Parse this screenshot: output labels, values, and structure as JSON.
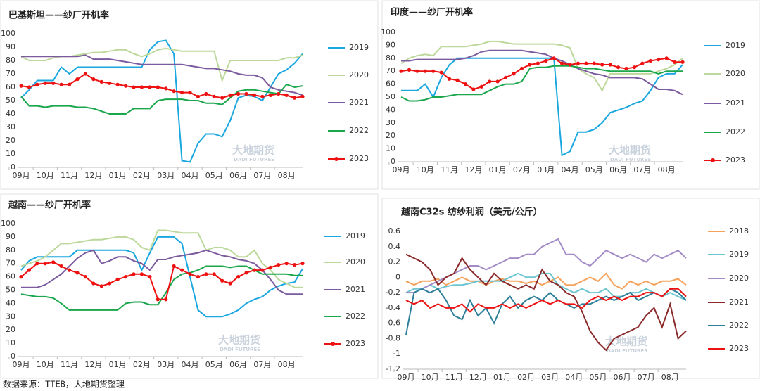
{
  "source": "数据来源：TTEB，大地期货整理",
  "chart_data": [
    {
      "type": "line",
      "title": "巴基斯坦——纱厂开机率",
      "watermark": "大地期货",
      "watermark_en": "DADI FUTURES",
      "categories": [
        "09月",
        null,
        null,
        "10月",
        null,
        null,
        "11月",
        null,
        null,
        "12月",
        null,
        null,
        "01月",
        null,
        null,
        "02月",
        null,
        null,
        "03月",
        null,
        null,
        "04月",
        null,
        null,
        "05月",
        null,
        null,
        "06月",
        null,
        null,
        "07月",
        null,
        null,
        "08月",
        null,
        null
      ],
      "ylim": [
        0,
        100
      ],
      "yticks": [
        0,
        10,
        20,
        30,
        40,
        50,
        60,
        70,
        80,
        90,
        100
      ],
      "grid": false,
      "series": [
        {
          "name": "2019",
          "color": "#1aa7e0",
          "values": [
            52,
            58,
            65,
            65,
            65,
            75,
            70,
            75,
            75,
            75,
            75,
            75,
            75,
            75,
            75,
            75,
            88,
            94,
            95,
            85,
            5,
            4,
            18,
            25,
            25,
            23,
            35,
            52,
            54,
            53,
            50,
            60,
            70,
            73,
            78,
            85
          ]
        },
        {
          "name": "2020",
          "color": "#bcd89a",
          "values": [
            83,
            80,
            80,
            80,
            82,
            83,
            83,
            84,
            85,
            86,
            86,
            87,
            88,
            88,
            85,
            83,
            85,
            88,
            89,
            88,
            87,
            87,
            87,
            87,
            87,
            65,
            80,
            80,
            80,
            80,
            80,
            80,
            80,
            82,
            82,
            84
          ]
        },
        {
          "name": "2021",
          "color": "#7b5a9e",
          "values": [
            83,
            83,
            83,
            83,
            83,
            83,
            83,
            83,
            84,
            81,
            81,
            81,
            80,
            79,
            78,
            77,
            77,
            77,
            77,
            77,
            77,
            76,
            75,
            74,
            74,
            73,
            72,
            70,
            69,
            69,
            67,
            60,
            58,
            57,
            56,
            54
          ]
        },
        {
          "name": "2022",
          "color": "#1aa64a",
          "values": [
            53,
            46,
            46,
            45,
            46,
            46,
            46,
            45,
            45,
            44,
            42,
            40,
            40,
            40,
            44,
            44,
            44,
            50,
            51,
            51,
            51,
            50,
            50,
            48,
            48,
            47,
            52,
            57,
            58,
            58,
            57,
            56,
            55,
            62,
            60,
            61
          ]
        },
        {
          "name": "2023",
          "color": "#ee1111",
          "markers": true,
          "values": [
            61,
            60,
            62,
            63,
            63,
            62,
            62,
            66,
            70,
            66,
            64,
            63,
            62,
            61,
            60,
            60,
            60,
            60,
            59,
            57,
            56,
            56,
            53,
            55,
            53,
            52,
            54,
            55,
            55,
            54,
            53,
            54,
            55,
            54,
            52,
            53
          ]
        }
      ]
    },
    {
      "type": "line",
      "title": "印度——纱厂开机率",
      "watermark": "大地期货",
      "watermark_en": "DADI FUTURES",
      "categories": [
        "09月",
        null,
        null,
        "10月",
        null,
        null,
        "11月",
        null,
        null,
        "12月",
        null,
        null,
        "01月",
        null,
        null,
        "02月",
        null,
        null,
        "03月",
        null,
        null,
        "04月",
        null,
        null,
        "05月",
        null,
        null,
        "06月",
        null,
        null,
        "07月",
        null,
        null,
        "08月",
        null,
        null
      ],
      "ylim": [
        0,
        100
      ],
      "yticks": [
        0,
        10,
        20,
        30,
        40,
        50,
        60,
        70,
        80,
        90,
        100
      ],
      "grid": false,
      "series": [
        {
          "name": "2019",
          "color": "#1aa7e0",
          "values": [
            55,
            55,
            55,
            60,
            50,
            65,
            75,
            80,
            80,
            80,
            80,
            80,
            80,
            80,
            80,
            80,
            80,
            80,
            80,
            80,
            5,
            8,
            23,
            23,
            25,
            30,
            38,
            40,
            42,
            45,
            47,
            55,
            65,
            68,
            68,
            75
          ]
        },
        {
          "name": "2020",
          "color": "#bcd89a",
          "values": [
            76,
            80,
            82,
            83,
            82,
            89,
            89,
            89,
            89,
            90,
            91,
            93,
            93,
            92,
            91,
            91,
            91,
            91,
            91,
            91,
            90,
            88,
            72,
            68,
            65,
            55,
            68,
            68,
            68,
            68,
            68,
            68,
            70,
            72,
            75,
            80
          ]
        },
        {
          "name": "2021",
          "color": "#7b5a9e",
          "values": [
            78,
            78,
            79,
            79,
            79,
            79,
            79,
            79,
            80,
            82,
            85,
            86,
            86,
            86,
            86,
            86,
            85,
            84,
            83,
            80,
            78,
            75,
            72,
            70,
            68,
            67,
            65,
            65,
            65,
            65,
            64,
            60,
            56,
            56,
            55,
            52
          ]
        },
        {
          "name": "2022",
          "color": "#1aa64a",
          "values": [
            50,
            47,
            47,
            48,
            50,
            50,
            51,
            52,
            52,
            52,
            52,
            55,
            58,
            60,
            60,
            62,
            72,
            73,
            73,
            74,
            74,
            74,
            73,
            72,
            72,
            71,
            70,
            70,
            70,
            70,
            70,
            70,
            68,
            70,
            70,
            70
          ]
        },
        {
          "name": "2023",
          "color": "#ee1111",
          "markers": true,
          "values": [
            70,
            71,
            70,
            70,
            70,
            69,
            64,
            63,
            60,
            56,
            58,
            62,
            62,
            65,
            68,
            72,
            75,
            76,
            78,
            80,
            76,
            75,
            76,
            76,
            76,
            75,
            75,
            73,
            72,
            73,
            76,
            78,
            79,
            80,
            77,
            77
          ]
        }
      ]
    },
    {
      "type": "line",
      "title": "越南——纱厂开机率",
      "watermark": "大地期货",
      "watermark_en": "DADI FUTURES",
      "categories": [
        "09月",
        null,
        null,
        "10月",
        null,
        null,
        "11月",
        null,
        null,
        "12月",
        null,
        null,
        "01月",
        null,
        null,
        "02月",
        null,
        null,
        "03月",
        null,
        null,
        "04月",
        null,
        null,
        "05月",
        null,
        null,
        "06月",
        null,
        null,
        "07月",
        null,
        null,
        "08月",
        null,
        null
      ],
      "ylim": [
        0,
        100
      ],
      "yticks": [
        0,
        10,
        20,
        30,
        40,
        50,
        60,
        70,
        80,
        90,
        100
      ],
      "grid": false,
      "series": [
        {
          "name": "2019",
          "color": "#1aa7e0",
          "values": [
            65,
            72,
            75,
            75,
            75,
            75,
            75,
            80,
            80,
            80,
            80,
            80,
            80,
            80,
            78,
            65,
            78,
            90,
            90,
            90,
            85,
            60,
            35,
            30,
            30,
            30,
            32,
            35,
            40,
            43,
            45,
            50,
            53,
            55,
            56,
            66
          ]
        },
        {
          "name": "2020",
          "color": "#bcd89a",
          "values": [
            68,
            70,
            72,
            75,
            80,
            85,
            85,
            86,
            87,
            88,
            88,
            89,
            90,
            90,
            88,
            82,
            80,
            95,
            95,
            94,
            93,
            93,
            93,
            80,
            82,
            82,
            80,
            75,
            75,
            80,
            70,
            65,
            58,
            55,
            52,
            52
          ]
        },
        {
          "name": "2021",
          "color": "#7b5a9e",
          "values": [
            52,
            52,
            52,
            54,
            58,
            62,
            68,
            74,
            78,
            80,
            70,
            72,
            75,
            75,
            72,
            70,
            65,
            73,
            73,
            75,
            76,
            77,
            78,
            80,
            78,
            76,
            75,
            73,
            72,
            70,
            65,
            58,
            50,
            47,
            47,
            47
          ]
        },
        {
          "name": "2022",
          "color": "#1aa64a",
          "values": [
            47,
            46,
            45,
            45,
            44,
            40,
            35,
            35,
            35,
            35,
            35,
            35,
            35,
            40,
            41,
            41,
            39,
            39,
            48,
            58,
            62,
            63,
            65,
            68,
            68,
            68,
            67,
            68,
            68,
            65,
            62,
            62,
            62,
            62,
            61,
            61
          ]
        },
        {
          "name": "2023",
          "color": "#ee1111",
          "markers": true,
          "values": [
            60,
            65,
            70,
            70,
            71,
            68,
            65,
            63,
            60,
            55,
            53,
            55,
            58,
            60,
            62,
            62,
            60,
            43,
            43,
            68,
            65,
            62,
            60,
            62,
            62,
            57,
            55,
            60,
            63,
            65,
            65,
            67,
            69,
            70,
            69,
            70
          ]
        }
      ]
    },
    {
      "type": "line",
      "title": "越南C32s 纺纱利润（美元/公斤）",
      "watermark": "大地期货",
      "watermark_en": "DADI FUTURES",
      "categories": [
        "09月",
        null,
        null,
        "10月",
        null,
        null,
        "11月",
        null,
        null,
        "12月",
        null,
        null,
        "01月",
        null,
        null,
        "02月",
        null,
        null,
        "03月",
        null,
        null,
        "04月",
        null,
        null,
        "05月",
        null,
        null,
        "06月",
        null,
        null,
        "07月",
        null,
        null,
        "08月",
        null,
        null
      ],
      "ylim": [
        -1.2,
        0.6
      ],
      "yticks": [
        -1.2,
        -1,
        -0.8,
        -0.6,
        -0.4,
        -0.2,
        0,
        0.2,
        0.4,
        0.6
      ],
      "grid": false,
      "series": [
        {
          "name": "2018",
          "color": "#f5a25d",
          "values": [
            -0.05,
            -0.1,
            -0.05,
            -0.05,
            -0.02,
            -0.1,
            -0.05,
            0.0,
            -0.05,
            -0.05,
            -0.1,
            -0.05,
            -0.02,
            -0.05,
            -0.05,
            -0.08,
            -0.05,
            -0.1,
            -0.05,
            0.0,
            -0.1,
            -0.1,
            -0.05,
            0.0,
            -0.05,
            0.05,
            -0.1,
            -0.15,
            -0.05,
            -0.1,
            -0.05,
            -0.1,
            -0.05,
            -0.05,
            -0.02,
            -0.1
          ]
        },
        {
          "name": "2019",
          "color": "#6cc5d0",
          "values": [
            -0.2,
            -0.15,
            -0.15,
            -0.1,
            -0.15,
            -0.12,
            -0.1,
            -0.1,
            -0.08,
            -0.05,
            -0.05,
            -0.05,
            -0.05,
            0.0,
            0.05,
            0.0,
            0.0,
            0.05,
            0.05,
            -0.1,
            -0.15,
            -0.2,
            -0.15,
            -0.2,
            -0.2,
            -0.15,
            -0.25,
            -0.25,
            -0.2,
            -0.2,
            -0.15,
            -0.2,
            -0.25,
            -0.2,
            -0.25,
            -0.3
          ]
        },
        {
          "name": "2020",
          "color": "#a38cc6",
          "values": [
            -0.2,
            -0.2,
            -0.15,
            -0.1,
            -0.05,
            0.0,
            0.05,
            0.1,
            0.15,
            0.15,
            0.1,
            0.15,
            0.2,
            0.25,
            0.25,
            0.3,
            0.3,
            0.4,
            0.45,
            0.5,
            0.3,
            0.3,
            0.2,
            0.15,
            0.25,
            0.35,
            0.3,
            0.25,
            0.3,
            0.25,
            0.2,
            0.3,
            0.25,
            0.3,
            0.35,
            0.25
          ]
        },
        {
          "name": "2021",
          "color": "#8b2a2a",
          "values": [
            0.3,
            0.25,
            0.2,
            0.1,
            -0.1,
            0.0,
            0.05,
            0.25,
            0.1,
            0.0,
            -0.1,
            0.05,
            -0.05,
            -0.1,
            -0.15,
            -0.1,
            -0.15,
            0.1,
            -0.05,
            -0.1,
            -0.2,
            -0.25,
            -0.45,
            -0.7,
            -0.85,
            -0.95,
            -0.8,
            -0.75,
            -0.7,
            -0.65,
            -0.5,
            -0.4,
            -0.65,
            -0.35,
            -0.8,
            -0.7
          ]
        },
        {
          "name": "2022",
          "color": "#2e7f9a",
          "values": [
            -0.75,
            -0.2,
            -0.15,
            -0.2,
            -0.15,
            -0.3,
            -0.5,
            -0.55,
            -0.3,
            -0.5,
            -0.4,
            -0.6,
            -0.35,
            -0.25,
            -0.4,
            -0.3,
            -0.25,
            -0.3,
            -0.2,
            -0.3,
            -0.35,
            -0.4,
            -0.35,
            -0.35,
            -0.3,
            -0.25,
            -0.3,
            -0.25,
            -0.2,
            -0.3,
            -0.25,
            -0.2,
            -0.25,
            -0.15,
            -0.2,
            -0.3
          ]
        },
        {
          "name": "2023",
          "color": "#ee1111",
          "values": [
            -0.3,
            -0.35,
            -0.3,
            -0.4,
            -0.35,
            -0.4,
            -0.4,
            -0.35,
            -0.45,
            -0.35,
            -0.4,
            -0.4,
            -0.35,
            -0.4,
            -0.35,
            -0.4,
            -0.35,
            -0.3,
            -0.35,
            -0.3,
            -0.35,
            -0.35,
            -0.4,
            -0.3,
            -0.25,
            -0.3,
            -0.25,
            -0.3,
            -0.25,
            -0.25,
            -0.2,
            -0.2,
            -0.25,
            -0.15,
            -0.15,
            -0.25
          ]
        }
      ]
    }
  ]
}
